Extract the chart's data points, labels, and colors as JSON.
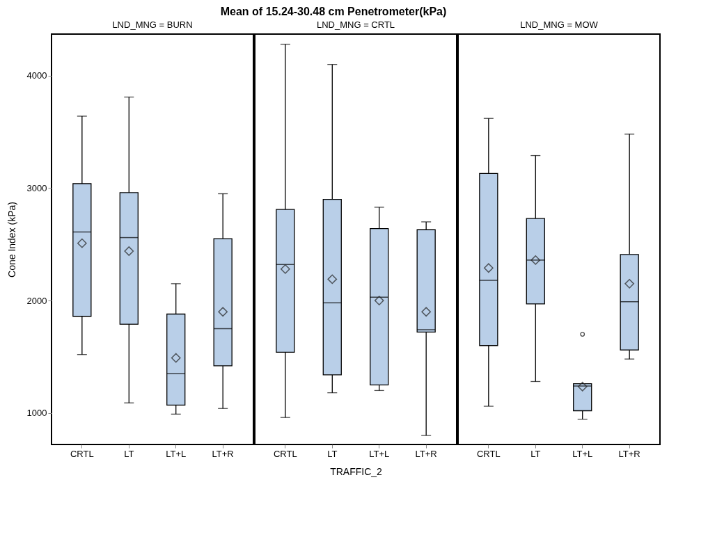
{
  "chart_data": [
    {
      "type": "box",
      "subtitle": "LND_MNG = BURN",
      "ylabel": "Cone Index (kPa)",
      "categories": [
        "CRTL",
        "LT",
        "LT+L",
        "LT+R"
      ],
      "color": "#b9cfe8",
      "marker": "diamond",
      "ylim": [
        720,
        4370
      ],
      "yticks": [
        1000,
        2000,
        3000,
        4000
      ],
      "grid": false,
      "boxes": [
        {
          "low": 1520,
          "q1": 1860,
          "median": 2610,
          "q3": 3040,
          "high": 3640,
          "mean": 2510
        },
        {
          "low": 1090,
          "q1": 1790,
          "median": 2560,
          "q3": 2960,
          "high": 3810,
          "mean": 2440
        },
        {
          "low": 990,
          "q1": 1070,
          "median": 1350,
          "q3": 1880,
          "high": 2150,
          "mean": 1490
        },
        {
          "low": 1040,
          "q1": 1420,
          "median": 1750,
          "q3": 2550,
          "high": 2950,
          "mean": 1900
        }
      ]
    },
    {
      "type": "box",
      "title": "Mean of 15.24-30.48 cm Penetrometer(kPa)",
      "subtitle": "LND_MNG = CRTL",
      "xlabel": "TRAFFIC_2",
      "categories": [
        "CRTL",
        "LT",
        "LT+L",
        "LT+R"
      ],
      "color": "#b9cfe8",
      "marker": "diamond",
      "ylim": [
        720,
        4370
      ],
      "yticks": [
        1000,
        2000,
        3000,
        4000
      ],
      "grid": false,
      "tick_labels": "x",
      "boxes": [
        {
          "low": 960,
          "q1": 1540,
          "median": 2320,
          "q3": 2810,
          "high": 4280,
          "mean": 2280
        },
        {
          "low": 1180,
          "q1": 1340,
          "median": 1980,
          "q3": 2900,
          "high": 4100,
          "mean": 2190
        },
        {
          "low": 1200,
          "q1": 1250,
          "median": 2030,
          "q3": 2640,
          "high": 2830,
          "mean": 2000
        },
        {
          "low": 800,
          "q1": 1720,
          "median": 1740,
          "q3": 2630,
          "high": 2700,
          "mean": 1900
        }
      ]
    },
    {
      "type": "box",
      "subtitle": "LND_MNG = MOW",
      "categories": [
        "CRTL",
        "LT",
        "LT+L",
        "LT+R"
      ],
      "color": "#b9cfe8",
      "marker": "diamond",
      "ylim": [
        720,
        4370
      ],
      "yticks": [
        1000,
        2000,
        3000,
        4000
      ],
      "grid": false,
      "tick_labels": "x",
      "boxes": [
        {
          "low": 1060,
          "q1": 1600,
          "median": 2180,
          "q3": 3130,
          "high": 3620,
          "mean": 2290
        },
        {
          "low": 1280,
          "q1": 1970,
          "median": 2360,
          "q3": 2730,
          "high": 3290,
          "mean": 2360
        },
        {
          "low": 945,
          "q1": 1020,
          "median": 1240,
          "q3": 1260,
          "high": 1260,
          "mean": 1235,
          "outliers": [
            1700
          ]
        },
        {
          "low": 1480,
          "q1": 1560,
          "median": 1990,
          "q3": 2410,
          "high": 3480,
          "mean": 2150
        }
      ]
    }
  ]
}
